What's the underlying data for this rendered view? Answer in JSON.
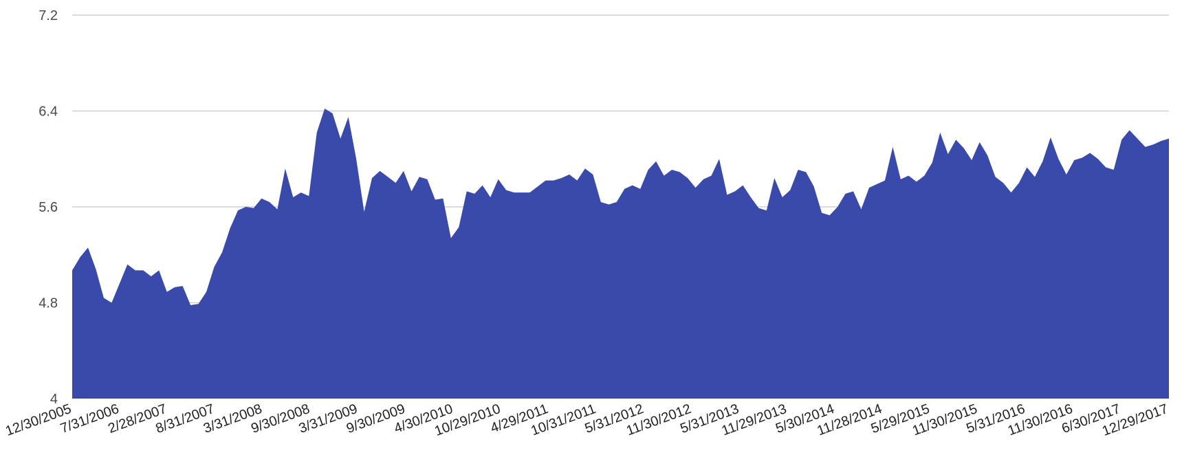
{
  "chart_data": {
    "type": "area",
    "title": "",
    "xlabel": "",
    "ylabel": "",
    "ylim": [
      4,
      7.2
    ],
    "y_ticks": [
      "4",
      "4.8",
      "5.6",
      "6.4",
      "7.2"
    ],
    "grid": "horizontal",
    "legend": "none",
    "area_color": "#3a4aab",
    "x_tick_labels": [
      "12/30/2005",
      "7/31/2006",
      "2/28/2007",
      "8/31/2007",
      "3/31/2008",
      "9/30/2008",
      "3/31/2009",
      "9/30/2009",
      "4/30/2010",
      "10/29/2010",
      "4/29/2011",
      "10/31/2011",
      "5/31/2012",
      "11/30/2012",
      "5/31/2013",
      "11/29/2013",
      "5/30/2014",
      "11/28/2014",
      "5/29/2015",
      "11/30/2015",
      "5/31/2016",
      "11/30/2016",
      "6/30/2017",
      "12/29/2017"
    ],
    "series": [
      {
        "values": [
          5.07,
          5.18,
          5.26,
          5.08,
          4.84,
          4.8,
          4.96,
          5.12,
          5.07,
          5.07,
          5.02,
          5.07,
          4.89,
          4.93,
          4.94,
          4.78,
          4.79,
          4.89,
          5.1,
          5.22,
          5.42,
          5.57,
          5.6,
          5.59,
          5.67,
          5.64,
          5.58,
          5.92,
          5.68,
          5.72,
          5.69,
          6.22,
          6.42,
          6.38,
          6.17,
          6.35,
          6.0,
          5.56,
          5.84,
          5.9,
          5.85,
          5.8,
          5.9,
          5.73,
          5.85,
          5.83,
          5.66,
          5.67,
          5.34,
          5.43,
          5.73,
          5.71,
          5.78,
          5.68,
          5.83,
          5.74,
          5.72,
          5.72,
          5.72,
          5.77,
          5.82,
          5.82,
          5.84,
          5.87,
          5.82,
          5.92,
          5.87,
          5.64,
          5.62,
          5.64,
          5.75,
          5.78,
          5.75,
          5.91,
          5.98,
          5.86,
          5.91,
          5.89,
          5.84,
          5.76,
          5.83,
          5.86,
          6.0,
          5.7,
          5.73,
          5.78,
          5.68,
          5.59,
          5.57,
          5.84,
          5.68,
          5.74,
          5.91,
          5.89,
          5.77,
          5.55,
          5.53,
          5.6,
          5.71,
          5.73,
          5.58,
          5.76,
          5.79,
          5.82,
          6.1,
          5.83,
          5.86,
          5.81,
          5.86,
          5.97,
          6.22,
          6.04,
          6.16,
          6.09,
          5.99,
          6.14,
          6.03,
          5.85,
          5.8,
          5.72,
          5.8,
          5.93,
          5.85,
          5.98,
          6.18,
          6.0,
          5.87,
          5.99,
          6.01,
          6.05,
          6.0,
          5.93,
          5.91,
          6.16,
          6.24,
          6.17,
          6.1,
          6.12,
          6.15,
          6.17
        ]
      }
    ]
  }
}
